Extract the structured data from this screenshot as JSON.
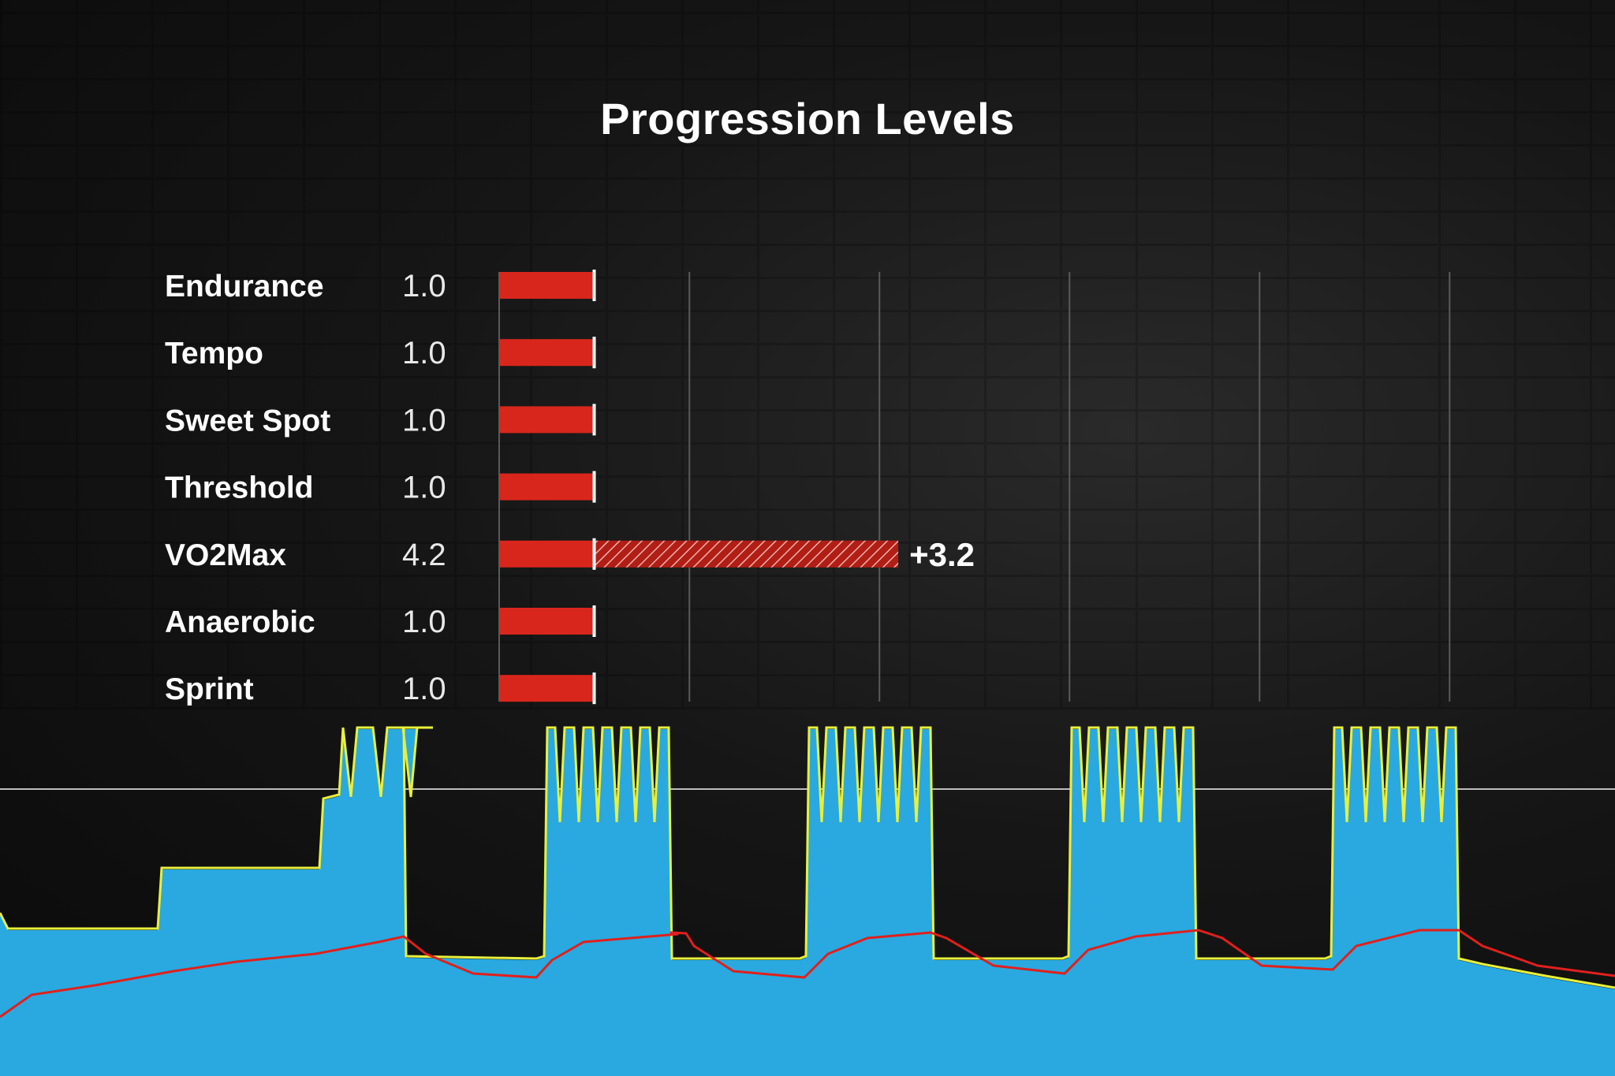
{
  "chart_data": {
    "type": "bar",
    "title": "Progression Levels",
    "categories": [
      "Endurance",
      "Tempo",
      "Sweet Spot",
      "Threshold",
      "VO2Max",
      "Anaerobic",
      "Sprint"
    ],
    "values": [
      1.0,
      1.0,
      1.0,
      1.0,
      4.2,
      1.0,
      1.0
    ],
    "value_labels": [
      "1.0",
      "1.0",
      "1.0",
      "1.0",
      "4.2",
      "1.0",
      "1.0"
    ],
    "baseline_level": 1.0,
    "increase": {
      "category": "VO2Max",
      "amount": 3.2,
      "label": "+3.2"
    },
    "xlim": [
      0,
      10
    ],
    "grid": true,
    "colors": {
      "bar": "#d9261c",
      "increase_hatch": "#d9261c",
      "marker": "#ffffff",
      "grid": "#5a5a5a"
    }
  },
  "workout_graph": {
    "type": "area",
    "colors": {
      "power_fill": "#29a9e0",
      "target": "#e8f03c",
      "heart_rate": "#e0201c",
      "threshold_line": "#bdbdbd"
    }
  }
}
